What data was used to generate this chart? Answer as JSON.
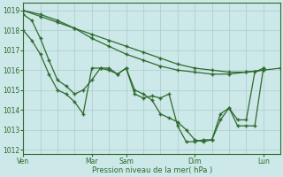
{
  "background_color": "#cce8e8",
  "grid_color": "#aacccc",
  "line_color": "#2d6a2d",
  "marker_color": "#2d6a2d",
  "xlabel_text": "Pression niveau de la mer( hPa )",
  "ylim": [
    1011.8,
    1019.4
  ],
  "yticks": [
    1012,
    1013,
    1014,
    1015,
    1016,
    1017,
    1018,
    1019
  ],
  "xtick_labels": [
    "Ven",
    "Mar",
    "Sam",
    "Dim",
    "Lun"
  ],
  "xtick_positions": [
    0,
    48,
    72,
    120,
    168
  ],
  "total_hours": 180,
  "series": [
    {
      "x": [
        0,
        12,
        24,
        36,
        48,
        60,
        72,
        84,
        96,
        108,
        120,
        132,
        144,
        156,
        168,
        180
      ],
      "y": [
        1019.0,
        1018.7,
        1018.4,
        1018.1,
        1017.8,
        1017.5,
        1017.2,
        1016.9,
        1016.6,
        1016.3,
        1016.1,
        1016.0,
        1015.9,
        1015.9,
        1016.0,
        1016.1
      ]
    },
    {
      "x": [
        0,
        12,
        24,
        36,
        48,
        60,
        72,
        84,
        96,
        108,
        120,
        132,
        144,
        156,
        168
      ],
      "y": [
        1019.0,
        1018.8,
        1018.5,
        1018.1,
        1017.6,
        1017.2,
        1016.8,
        1016.5,
        1016.2,
        1016.0,
        1015.9,
        1015.8,
        1015.8,
        1015.9,
        1016.0
      ]
    },
    {
      "x": [
        0,
        6,
        12,
        18,
        24,
        30,
        36,
        42,
        48,
        54,
        60,
        66,
        72,
        78,
        84,
        90,
        96,
        102,
        108,
        114,
        120,
        126,
        132,
        138,
        144,
        150,
        156,
        162,
        168
      ],
      "y": [
        1018.0,
        1017.5,
        1016.8,
        1015.8,
        1015.0,
        1014.8,
        1014.4,
        1013.8,
        1016.1,
        1016.1,
        1016.0,
        1015.8,
        1016.1,
        1015.0,
        1014.8,
        1014.5,
        1013.8,
        1013.6,
        1013.4,
        1013.0,
        1012.5,
        1012.4,
        1012.5,
        1013.5,
        1014.1,
        1013.5,
        1013.5,
        1015.9,
        1016.1
      ]
    },
    {
      "x": [
        0,
        6,
        12,
        18,
        24,
        30,
        36,
        42,
        48,
        54,
        60,
        66,
        72,
        78,
        84,
        90,
        96,
        102,
        108,
        114,
        120,
        126,
        132,
        138,
        144,
        150,
        156,
        162,
        168
      ],
      "y": [
        1018.8,
        1018.5,
        1017.6,
        1016.5,
        1015.5,
        1015.2,
        1014.8,
        1015.0,
        1015.5,
        1016.1,
        1016.1,
        1015.8,
        1016.1,
        1014.8,
        1014.6,
        1014.7,
        1014.6,
        1014.8,
        1013.2,
        1012.4,
        1012.4,
        1012.5,
        1012.5,
        1013.8,
        1014.1,
        1013.2,
        1013.2,
        1013.2,
        1016.1
      ]
    }
  ]
}
